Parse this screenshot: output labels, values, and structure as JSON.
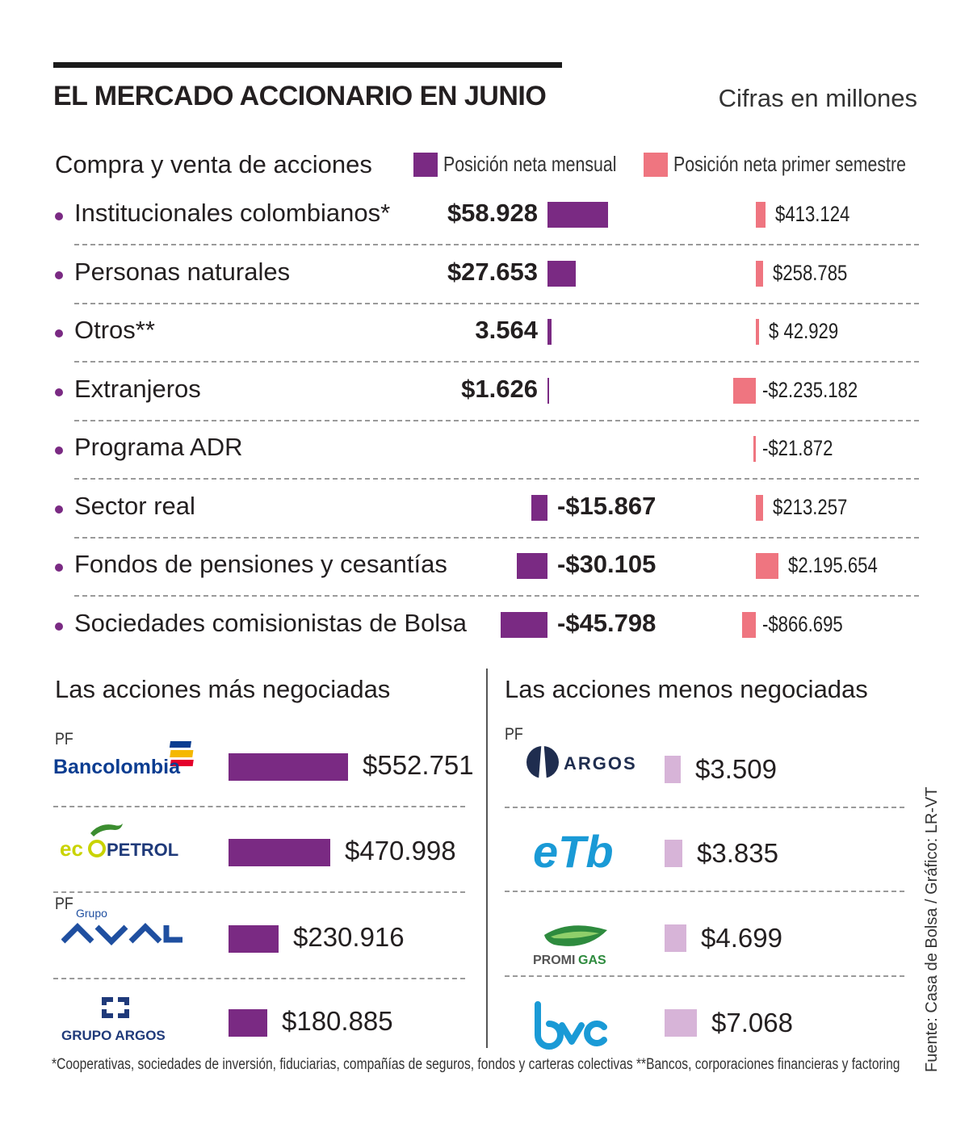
{
  "header": {
    "title": "EL MERCADO ACCIONARIO EN JUNIO",
    "unit": "Cifras en millones"
  },
  "colors": {
    "monthly": "#7a2a83",
    "semester": "#ef7580",
    "least": "#d7b4d8"
  },
  "chart_data": [
    {
      "type": "bar",
      "title": "Compra y venta de acciones",
      "legend": [
        "Posición neta mensual",
        "Posición neta primer semestre"
      ],
      "categories": [
        "Institucionales colombianos*",
        "Personas naturales",
        "Otros**",
        "Extranjeros",
        "Programa ADR",
        "Sector real",
        "Fondos de pensiones y cesantías",
        "Sociedades comisionistas de Bolsa"
      ],
      "series": [
        {
          "name": "Posición neta mensual",
          "values": [
            58928,
            27653,
            3564,
            1626,
            null,
            -15867,
            -30105,
            -45798
          ],
          "labels": [
            "$58.928",
            "$27.653",
            "3.564",
            "$1.626",
            "",
            "-$15.867",
            "-$30.105",
            "-$45.798"
          ]
        },
        {
          "name": "Posición neta primer semestre",
          "values": [
            413124,
            258785,
            42929,
            -2235182,
            -21872,
            213257,
            2195654,
            -866695
          ],
          "labels": [
            "$413.124",
            "$258.785",
            "$ 42.929",
            "-$2.235.182",
            "-$21.872",
            "$213.257",
            "$2.195.654",
            "-$866.695"
          ]
        }
      ]
    },
    {
      "type": "bar",
      "title": "Las acciones más negociadas",
      "categories": [
        "Bancolombia",
        "Ecopetrol",
        "Grupo Aval",
        "Grupo Argos"
      ],
      "values": [
        552751,
        470998,
        230916,
        180885
      ],
      "labels": [
        "$552.751",
        "$470.998",
        "$230.916",
        "$180.885"
      ]
    },
    {
      "type": "bar",
      "title": "Las acciones menos negociadas",
      "categories": [
        "Argos",
        "ETB",
        "Promigas",
        "BVC"
      ],
      "values": [
        3509,
        3835,
        4699,
        7068
      ],
      "labels": [
        "$3.509",
        "$3.835",
        "$4.699",
        "$7.068"
      ]
    }
  ],
  "logos": {
    "pf": "PF",
    "bancolombia": "Bancolombia",
    "ecopetrol_a": "ec",
    "ecopetrol_b": "PETROL",
    "aval_small": "Grupo",
    "grupo_argos": "GRUPO ARGOS",
    "argos": "ARGOS",
    "etb": "eTb",
    "promigas_a": "PROMI",
    "promigas_b": "GAS"
  },
  "footnote": "*Cooperativas, sociedades de inversión, fiduciarias, compañías de seguros, fondos y carteras colectivas **Bancos, corporaciones financieras y factoring",
  "source": "Fuente: Casa de Bolsa / Gráfico: LR-VT"
}
